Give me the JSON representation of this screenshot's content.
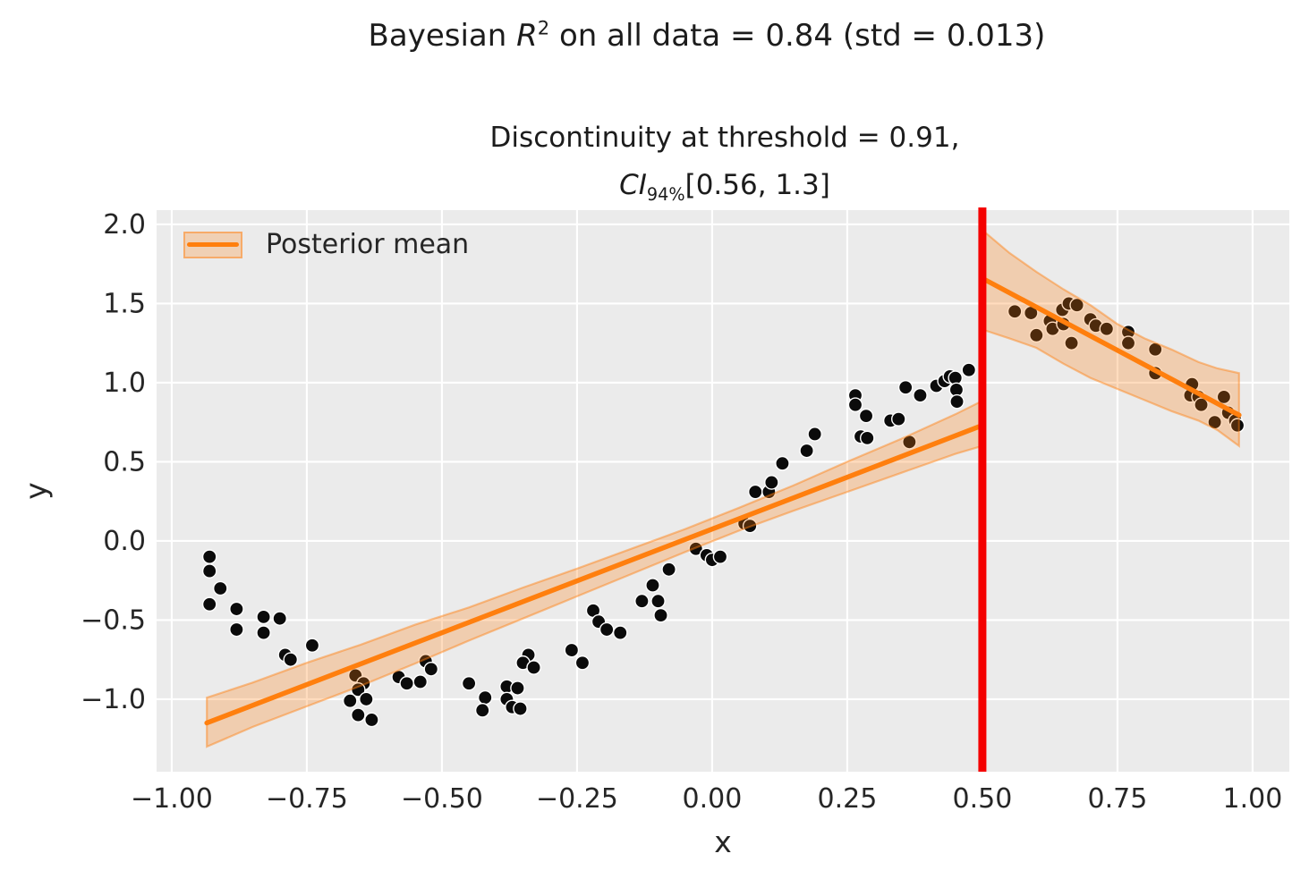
{
  "figure": {
    "title": {
      "prefix": "Bayesian ",
      "math_symbol": "R",
      "superscript": "2",
      "suffix": " on all data = 0.84 (std = 0.013)"
    },
    "subtitle": {
      "line1": "Discontinuity at threshold = 0.91,",
      "ci_symbol": "CI",
      "ci_subscript": "94%",
      "ci_suffix": "[0.56, 1.3]"
    }
  },
  "legend": {
    "label": "Posterior mean"
  },
  "axes": {
    "xlabel": "x",
    "ylabel": "y",
    "xlim": [
      -1.028,
      1.068
    ],
    "ylim": [
      -1.458,
      2.09
    ],
    "x_ticks": [
      -1.0,
      -0.75,
      -0.5,
      -0.25,
      0.0,
      0.25,
      0.5,
      0.75,
      1.0
    ],
    "x_tick_labels": [
      "−1.00",
      "−0.75",
      "−0.50",
      "−0.25",
      "0.00",
      "0.25",
      "0.50",
      "0.75",
      "1.00"
    ],
    "y_ticks": [
      -1.0,
      -0.5,
      0.0,
      0.5,
      1.0,
      1.5,
      2.0
    ],
    "y_tick_labels": [
      "−1.0",
      "−0.5",
      "0.0",
      "0.5",
      "1.0",
      "1.5",
      "2.0"
    ]
  },
  "colors": {
    "plot_bg": "#ebebeb",
    "grid": "#ffffff",
    "scatter": "#0b0b0b",
    "scatter_edge": "#ffffff",
    "mean_line": "#ff7f0e",
    "band_fill": "#ff7f0e",
    "band_fill_opacity": 0.27,
    "band_edge": "#ff7f0e",
    "band_edge_opacity": 0.45,
    "threshold_line": "#f40000",
    "text": "#262626"
  },
  "chart_data": {
    "type": "scatter",
    "title": "Bayesian R^2 on all data = 0.84 (std = 0.013)",
    "subtitle": "Discontinuity at threshold = 0.91, CI_94%[0.56, 1.3]",
    "xlabel": "x",
    "ylabel": "y",
    "xlim": [
      -1.028,
      1.068
    ],
    "ylim": [
      -1.458,
      2.09
    ],
    "grid": true,
    "legend_entries": [
      "Posterior mean"
    ],
    "legend_position": "upper left",
    "threshold": {
      "x": 0.5
    },
    "scatter_points": [
      [
        -0.93,
        -0.1
      ],
      [
        -0.93,
        -0.19
      ],
      [
        -0.91,
        -0.3
      ],
      [
        -0.93,
        -0.4
      ],
      [
        -0.88,
        -0.43
      ],
      [
        -0.88,
        -0.56
      ],
      [
        -0.83,
        -0.48
      ],
      [
        -0.8,
        -0.49
      ],
      [
        -0.83,
        -0.58
      ],
      [
        -0.79,
        -0.72
      ],
      [
        -0.78,
        -0.75
      ],
      [
        -0.74,
        -0.66
      ],
      [
        -0.66,
        -0.85
      ],
      [
        -0.645,
        -0.9
      ],
      [
        -0.655,
        -0.94
      ],
      [
        -0.67,
        -1.01
      ],
      [
        -0.64,
        -1.0
      ],
      [
        -0.655,
        -1.1
      ],
      [
        -0.63,
        -1.13
      ],
      [
        -0.58,
        -0.86
      ],
      [
        -0.565,
        -0.9
      ],
      [
        -0.54,
        -0.89
      ],
      [
        -0.53,
        -0.76
      ],
      [
        -0.52,
        -0.81
      ],
      [
        -0.45,
        -0.9
      ],
      [
        -0.42,
        -0.99
      ],
      [
        -0.425,
        -1.07
      ],
      [
        -0.38,
        -0.92
      ],
      [
        -0.36,
        -0.93
      ],
      [
        -0.38,
        -1.0
      ],
      [
        -0.37,
        -1.05
      ],
      [
        -0.355,
        -1.06
      ],
      [
        -0.34,
        -0.72
      ],
      [
        -0.35,
        -0.77
      ],
      [
        -0.33,
        -0.8
      ],
      [
        -0.26,
        -0.69
      ],
      [
        -0.24,
        -0.77
      ],
      [
        -0.22,
        -0.44
      ],
      [
        -0.21,
        -0.51
      ],
      [
        -0.195,
        -0.56
      ],
      [
        -0.17,
        -0.58
      ],
      [
        -0.13,
        -0.38
      ],
      [
        -0.1,
        -0.38
      ],
      [
        -0.11,
        -0.28
      ],
      [
        -0.095,
        -0.47
      ],
      [
        -0.08,
        -0.18
      ],
      [
        -0.03,
        -0.05
      ],
      [
        -0.01,
        -0.09
      ],
      [
        0.0,
        -0.12
      ],
      [
        0.015,
        -0.1
      ],
      [
        0.06,
        0.11
      ],
      [
        0.07,
        0.095
      ],
      [
        0.08,
        0.31
      ],
      [
        0.105,
        0.31
      ],
      [
        0.11,
        0.37
      ],
      [
        0.13,
        0.49
      ],
      [
        0.175,
        0.57
      ],
      [
        0.19,
        0.675
      ],
      [
        0.265,
        0.92
      ],
      [
        0.265,
        0.86
      ],
      [
        0.285,
        0.79
      ],
      [
        0.275,
        0.66
      ],
      [
        0.287,
        0.65
      ],
      [
        0.33,
        0.76
      ],
      [
        0.345,
        0.77
      ],
      [
        0.358,
        0.97
      ],
      [
        0.365,
        0.625
      ],
      [
        0.385,
        0.92
      ],
      [
        0.415,
        0.98
      ],
      [
        0.43,
        1.01
      ],
      [
        0.44,
        1.04
      ],
      [
        0.45,
        1.03
      ],
      [
        0.452,
        0.955
      ],
      [
        0.453,
        0.88
      ],
      [
        0.475,
        1.08
      ],
      [
        0.56,
        1.45
      ],
      [
        0.59,
        1.44
      ],
      [
        0.6,
        1.3
      ],
      [
        0.625,
        1.39
      ],
      [
        0.63,
        1.34
      ],
      [
        0.648,
        1.46
      ],
      [
        0.65,
        1.37
      ],
      [
        0.66,
        1.5
      ],
      [
        0.675,
        1.49
      ],
      [
        0.665,
        1.25
      ],
      [
        0.7,
        1.4
      ],
      [
        0.71,
        1.36
      ],
      [
        0.73,
        1.34
      ],
      [
        0.77,
        1.32
      ],
      [
        0.77,
        1.25
      ],
      [
        0.82,
        1.21
      ],
      [
        0.82,
        1.06
      ],
      [
        0.888,
        0.99
      ],
      [
        0.885,
        0.92
      ],
      [
        0.9,
        0.91
      ],
      [
        0.905,
        0.86
      ],
      [
        0.947,
        0.91
      ],
      [
        0.955,
        0.81
      ],
      [
        0.93,
        0.75
      ],
      [
        0.968,
        0.76
      ],
      [
        0.972,
        0.73
      ]
    ],
    "posterior_mean_segments": [
      {
        "name": "pre-threshold",
        "x": [
          -0.935,
          0.5
        ],
        "y": [
          -1.15,
          0.73
        ]
      },
      {
        "name": "post-threshold",
        "x": [
          0.505,
          0.975
        ],
        "y": [
          1.65,
          0.795
        ]
      }
    ],
    "credible_bands": [
      {
        "name": "pre-threshold",
        "x": [
          -0.935,
          -0.85,
          -0.75,
          -0.65,
          -0.55,
          -0.45,
          -0.35,
          -0.25,
          -0.15,
          -0.05,
          0.05,
          0.15,
          0.25,
          0.35,
          0.45,
          0.5
        ],
        "upper": [
          -0.99,
          -0.895,
          -0.77,
          -0.655,
          -0.53,
          -0.42,
          -0.295,
          -0.175,
          -0.05,
          0.075,
          0.21,
          0.35,
          0.5,
          0.645,
          0.8,
          0.885
        ],
        "lower": [
          -1.3,
          -1.175,
          -1.045,
          -0.915,
          -0.775,
          -0.63,
          -0.49,
          -0.35,
          -0.21,
          -0.07,
          0.065,
          0.19,
          0.31,
          0.43,
          0.55,
          0.6
        ]
      },
      {
        "name": "post-threshold",
        "x": [
          0.505,
          0.55,
          0.6,
          0.65,
          0.7,
          0.75,
          0.8,
          0.85,
          0.9,
          0.935,
          0.975
        ],
        "upper": [
          1.95,
          1.82,
          1.7,
          1.59,
          1.49,
          1.37,
          1.28,
          1.21,
          1.13,
          1.09,
          1.06
        ],
        "lower": [
          1.33,
          1.28,
          1.22,
          1.12,
          1.03,
          0.96,
          0.89,
          0.82,
          0.76,
          0.7,
          0.6
        ]
      }
    ]
  }
}
